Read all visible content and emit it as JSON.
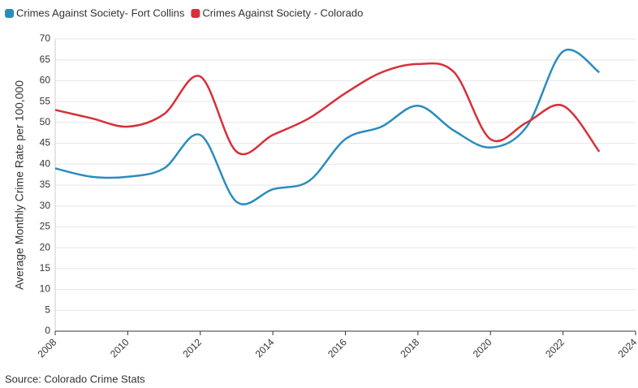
{
  "chart_data": {
    "type": "line",
    "legend": "top-left",
    "y_label": "Average Monthly Crime Rate per 100,000",
    "source": "Source: Colorado Crime Stats",
    "x": [
      2008,
      2009,
      2010,
      2011,
      2012,
      2013,
      2014,
      2015,
      2016,
      2017,
      2018,
      2019,
      2020,
      2021,
      2022,
      2023
    ],
    "series": [
      {
        "name": "Crimes Against Society- Fort Collins",
        "color": "#2b8cbe",
        "values": [
          39,
          37,
          37,
          39,
          47,
          31,
          34,
          36,
          46,
          49,
          54,
          48,
          44,
          49,
          67,
          62
        ]
      },
      {
        "name": "Crimes Against Society - Colorado",
        "color": "#d7303a",
        "values": [
          53,
          51,
          49,
          52,
          61,
          43,
          47,
          51,
          57,
          62,
          64,
          62,
          46,
          50,
          54,
          43
        ]
      }
    ],
    "xlim": [
      2008,
      2024
    ],
    "xticks": [
      2008,
      2010,
      2012,
      2014,
      2016,
      2018,
      2020,
      2022,
      2024
    ],
    "ylim": [
      0,
      70
    ],
    "yticks": [
      0,
      5,
      10,
      15,
      20,
      25,
      30,
      35,
      40,
      45,
      50,
      55,
      60,
      65,
      70
    ],
    "grid": true
  }
}
